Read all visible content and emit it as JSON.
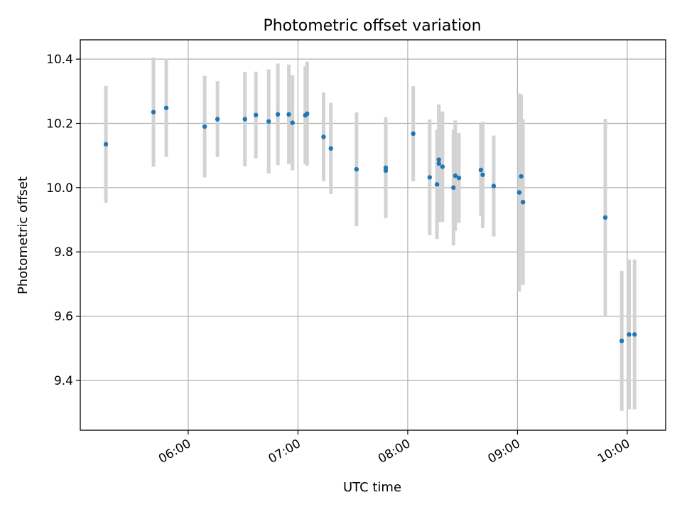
{
  "chart_data": {
    "type": "scatter",
    "title": "Photometric offset variation",
    "xlabel": "UTC time",
    "ylabel": "Photometric offset",
    "x_unit": "time of day (UTC)",
    "xlim": [
      "05:01",
      "10:21"
    ],
    "ylim": [
      9.245,
      10.46
    ],
    "xticks": [
      {
        "label": "06:00",
        "time": "06:00"
      },
      {
        "label": "07:00",
        "time": "07:00"
      },
      {
        "label": "08:00",
        "time": "08:00"
      },
      {
        "label": "09:00",
        "time": "09:00"
      },
      {
        "label": "10:00",
        "time": "10:00"
      }
    ],
    "yticks": [
      {
        "label": "9.4",
        "value": 9.4
      },
      {
        "label": "9.6",
        "value": 9.6
      },
      {
        "label": "9.8",
        "value": 9.8
      },
      {
        "label": "10.0",
        "value": 10.0
      },
      {
        "label": "10.2",
        "value": 10.2
      },
      {
        "label": "10.4",
        "value": 10.4
      }
    ],
    "grid": true,
    "legend": "none",
    "point_color": "#1f77b4",
    "errorbar_color": "#d3d3d3",
    "points": [
      {
        "time": "05:15",
        "y": 10.135,
        "err": 0.182
      },
      {
        "time": "05:41",
        "y": 10.235,
        "err": 0.17
      },
      {
        "time": "05:48",
        "y": 10.248,
        "err": 0.153
      },
      {
        "time": "06:09",
        "y": 10.19,
        "err": 0.158
      },
      {
        "time": "06:16",
        "y": 10.213,
        "err": 0.118
      },
      {
        "time": "06:31",
        "y": 10.213,
        "err": 0.147
      },
      {
        "time": "06:37",
        "y": 10.226,
        "err": 0.135
      },
      {
        "time": "06:44",
        "y": 10.206,
        "err": 0.162
      },
      {
        "time": "06:49",
        "y": 10.228,
        "err": 0.158
      },
      {
        "time": "06:55",
        "y": 10.228,
        "err": 0.155
      },
      {
        "time": "06:57",
        "y": 10.202,
        "err": 0.148
      },
      {
        "time": "07:04",
        "y": 10.225,
        "err": 0.152
      },
      {
        "time": "07:05",
        "y": 10.23,
        "err": 0.162
      },
      {
        "time": "07:14",
        "y": 10.158,
        "err": 0.138
      },
      {
        "time": "07:18",
        "y": 10.122,
        "err": 0.142
      },
      {
        "time": "07:32",
        "y": 10.057,
        "err": 0.177
      },
      {
        "time": "07:48",
        "y": 10.053,
        "err": 0.145
      },
      {
        "time": "07:48",
        "y": 10.062,
        "err": 0.157
      },
      {
        "time": "08:03",
        "y": 10.168,
        "err": 0.148
      },
      {
        "time": "08:12",
        "y": 10.032,
        "err": 0.18
      },
      {
        "time": "08:16",
        "y": 10.01,
        "err": 0.17
      },
      {
        "time": "08:17",
        "y": 10.075,
        "err": 0.182
      },
      {
        "time": "08:17",
        "y": 10.087,
        "err": 0.172
      },
      {
        "time": "08:19",
        "y": 10.065,
        "err": 0.172
      },
      {
        "time": "08:25",
        "y": 10.0,
        "err": 0.18
      },
      {
        "time": "08:26",
        "y": 10.037,
        "err": 0.172
      },
      {
        "time": "08:28",
        "y": 10.03,
        "err": 0.14
      },
      {
        "time": "08:40",
        "y": 10.055,
        "err": 0.143
      },
      {
        "time": "08:41",
        "y": 10.04,
        "err": 0.165
      },
      {
        "time": "08:47",
        "y": 10.005,
        "err": 0.157
      },
      {
        "time": "09:01",
        "y": 9.985,
        "err": 0.308
      },
      {
        "time": "09:02",
        "y": 10.035,
        "err": 0.255
      },
      {
        "time": "09:03",
        "y": 9.955,
        "err": 0.258
      },
      {
        "time": "09:48",
        "y": 9.907,
        "err": 0.307
      },
      {
        "time": "09:57",
        "y": 9.523,
        "err": 0.218
      },
      {
        "time": "10:01",
        "y": 9.543,
        "err": 0.233
      },
      {
        "time": "10:04",
        "y": 9.543,
        "err": 0.233
      }
    ]
  }
}
